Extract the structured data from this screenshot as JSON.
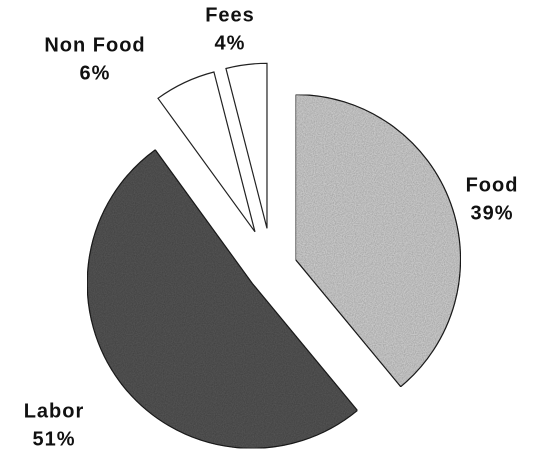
{
  "chart_data": {
    "type": "pie",
    "categories": [
      "Food",
      "Labor",
      "Non Food",
      "Fees"
    ],
    "values": [
      39,
      51,
      6,
      4
    ],
    "value_labels": [
      "39%",
      "51%",
      "6%",
      "4%"
    ],
    "colors": [
      "#d4d4d4",
      "#585858",
      "#ffffff",
      "#ffffff"
    ]
  }
}
